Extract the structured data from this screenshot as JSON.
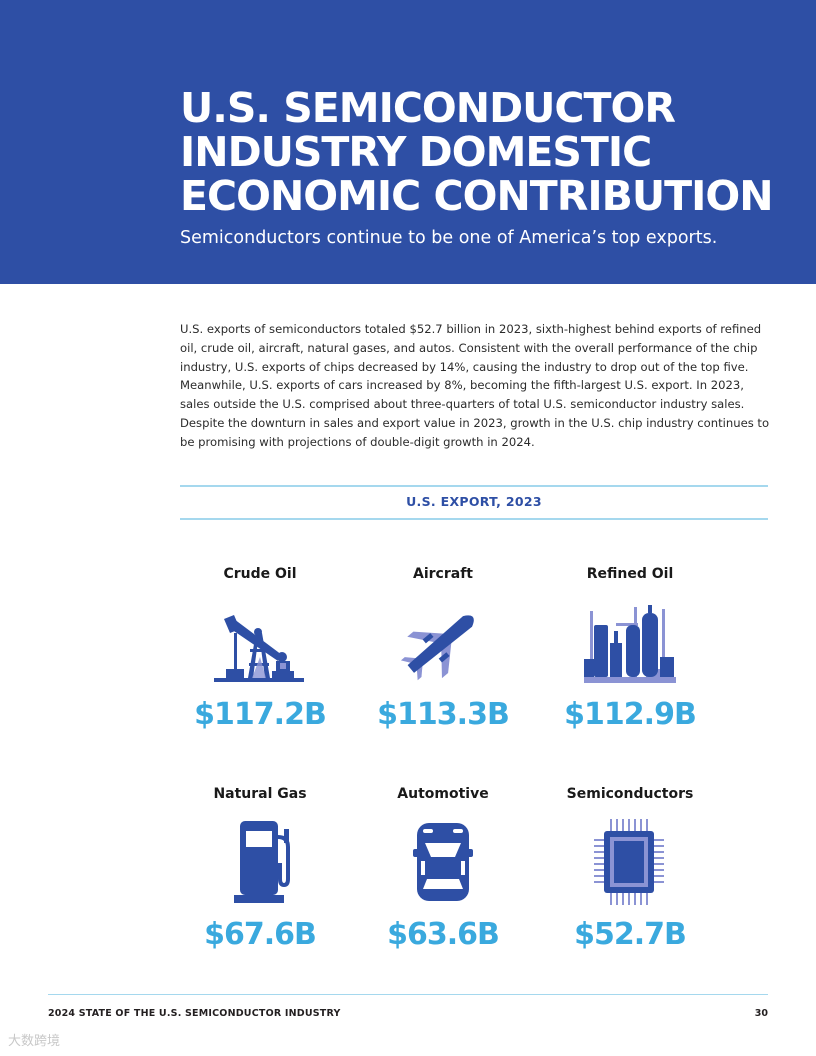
{
  "header": {
    "title_lines": [
      "U.S. SEMICONDUCTOR",
      "INDUSTRY DOMESTIC",
      "ECONOMIC CONTRIBUTION"
    ],
    "subtitle": "Semiconductors continue to be one of America’s top exports."
  },
  "intro": {
    "paragraph": "U.S. exports of semiconductors totaled $52.7 billion in 2023, sixth-highest behind exports of refined oil, crude oil, aircraft, natural gases, and autos. Consistent with the overall performance of the chip industry, U.S. exports of chips decreased by 14%, causing the industry to drop out of the top five. Meanwhile, U.S. exports of cars increased by 8%, becoming the fifth-largest U.S. export. In 2023, sales outside the U.S. comprised about three-quarters of total U.S. semiconductor industry sales. Despite the downturn in sales and export value in 2023, growth in the U.S. chip industry continues to be promising with projections of double-digit growth in 2024."
  },
  "exports": {
    "section_title": "U.S. EXPORT, 2023",
    "items": [
      {
        "label": "Crude Oil",
        "value": "$117.2B",
        "icon": "oil-pump-icon"
      },
      {
        "label": "Aircraft",
        "value": "$113.3B",
        "icon": "airplane-icon"
      },
      {
        "label": "Refined Oil",
        "value": "$112.9B",
        "icon": "refinery-icon"
      },
      {
        "label": "Natural Gas",
        "value": "$67.6B",
        "icon": "gas-pump-icon"
      },
      {
        "label": "Automotive",
        "value": "$63.6B",
        "icon": "car-icon"
      },
      {
        "label": "Semiconductors",
        "value": "$52.7B",
        "icon": "chip-icon"
      }
    ]
  },
  "footer": {
    "publication": "2024 STATE OF THE U.S. SEMICONDUCTOR INDUSTRY",
    "page_number": "30"
  },
  "watermark": "大数跨境",
  "colors": {
    "banner": "#2e4fa5",
    "icon_primary": "#2e4fa5",
    "icon_secondary": "#8b93d4",
    "value": "#3aa9de",
    "rule": "#a5d8ee"
  }
}
